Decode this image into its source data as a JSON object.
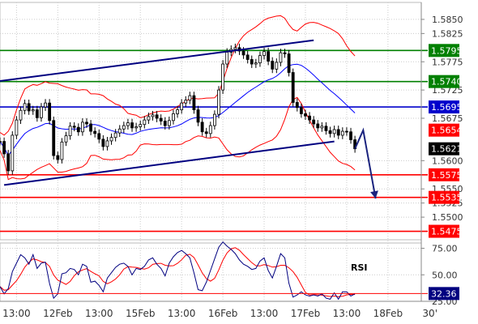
{
  "chart_data": {
    "type": "line",
    "price_panel": {
      "ylim": [
        1.546,
        1.588
      ],
      "y_ticks": [
        "1.5850",
        "1.5825",
        "1.5775",
        "1.5725",
        "1.5675",
        "1.5600",
        "1.5550",
        "1.5525",
        "1.5500"
      ],
      "tick_values": [
        1.585,
        1.5825,
        1.5775,
        1.5725,
        1.5675,
        1.56,
        1.555,
        1.5525,
        1.55
      ],
      "levels": [
        {
          "label": "1.5795",
          "value": 1.5795,
          "kind": "resistance",
          "color": "#008000"
        },
        {
          "label": "1.5740",
          "value": 1.574,
          "kind": "resistance",
          "color": "#008000"
        },
        {
          "label": "1.5695",
          "value": 1.5695,
          "kind": "pivot",
          "color": "#0000cc"
        },
        {
          "label": "1.5654",
          "value": 1.5654,
          "kind": "marker",
          "color": "#ff0000"
        },
        {
          "label": "1.5621",
          "value": 1.5621,
          "kind": "current",
          "color": "#000000"
        },
        {
          "label": "1.5575",
          "value": 1.5575,
          "kind": "support",
          "color": "#ff0000"
        },
        {
          "label": "1.5535",
          "value": 1.5535,
          "kind": "support",
          "color": "#ff0000"
        },
        {
          "label": "1.5475",
          "value": 1.5475,
          "kind": "support",
          "color": "#ff0000"
        }
      ],
      "close_series": [
        1.5634,
        1.5612,
        1.5582,
        1.5645,
        1.5672,
        1.5689,
        1.5701,
        1.5688,
        1.569,
        1.5676,
        1.5695,
        1.5702,
        1.5671,
        1.5609,
        1.5602,
        1.5633,
        1.5644,
        1.5661,
        1.5659,
        1.5651,
        1.5668,
        1.5665,
        1.5652,
        1.5648,
        1.5638,
        1.5625,
        1.5635,
        1.5641,
        1.5649,
        1.5656,
        1.5662,
        1.5667,
        1.5658,
        1.566,
        1.5664,
        1.5672,
        1.5678,
        1.5681,
        1.5675,
        1.567,
        1.5662,
        1.5671,
        1.5683,
        1.569,
        1.5702,
        1.5707,
        1.5715,
        1.569,
        1.5668,
        1.5651,
        1.5648,
        1.5662,
        1.5682,
        1.5725,
        1.5771,
        1.5792,
        1.5797,
        1.58,
        1.5794,
        1.5787,
        1.5779,
        1.5771,
        1.5773,
        1.5786,
        1.5793,
        1.5776,
        1.5762,
        1.5774,
        1.5791,
        1.5789,
        1.5756,
        1.5703,
        1.5694,
        1.5683,
        1.5679,
        1.5672,
        1.5665,
        1.5658,
        1.5661,
        1.5653,
        1.5648,
        1.5655,
        1.5645,
        1.5652,
        1.5651,
        1.5637,
        1.5621
      ],
      "trend_channel": {
        "upper": [
          {
            "x": 0,
            "y": 1.5741
          },
          {
            "x": 76,
            "y": 1.5813
          }
        ],
        "lower": [
          {
            "x": 1,
            "y": 1.5557
          },
          {
            "x": 81,
            "y": 1.5634
          }
        ]
      },
      "projection": [
        {
          "x": 86,
          "y": 1.5621
        },
        {
          "x": 88,
          "y": 1.5654
        },
        {
          "x": 91,
          "y": 1.5533
        }
      ]
    },
    "rsi_panel": {
      "label": "RSI",
      "ylim": [
        25,
        80
      ],
      "y_ticks": [
        "75.00",
        "50.00",
        "25.00"
      ],
      "tick_values": [
        75,
        50,
        25
      ],
      "current": {
        "label": "32.36",
        "value": 32.36
      },
      "rsi_series": [
        39,
        32,
        37,
        53,
        61,
        69,
        66,
        60,
        69,
        56,
        61,
        62,
        42,
        28,
        32,
        51,
        52,
        56,
        55,
        50,
        60,
        58,
        43,
        44,
        40,
        34,
        47,
        52,
        57,
        60,
        61,
        58,
        50,
        56,
        55,
        58,
        64,
        66,
        60,
        56,
        49,
        61,
        67,
        71,
        73,
        70,
        66,
        52,
        36,
        35,
        43,
        54,
        65,
        76,
        81,
        77,
        74,
        70,
        64,
        60,
        58,
        55,
        56,
        63,
        66,
        54,
        47,
        58,
        70,
        66,
        42,
        29,
        31,
        34,
        31,
        30,
        31,
        30,
        32,
        28,
        27,
        33,
        27,
        34,
        34,
        30,
        32
      ]
    },
    "x_ticks": [
      "13:00",
      "12Feb",
      "13:00",
      "15Feb",
      "13:00",
      "16Feb",
      "13:00",
      "17Feb",
      "13:00",
      "18Feb",
      "30'"
    ],
    "x_positions": [
      4,
      14,
      24,
      34,
      44,
      54,
      64,
      74,
      84,
      94,
      106
    ],
    "x_domain": [
      0,
      106
    ]
  },
  "colors": {
    "price": "#000000",
    "bollinger": "#ff0000",
    "moving_average": "#0000ff",
    "channel": "#000080",
    "projection_arrow": "#1a237e",
    "rsi": "#000080",
    "rsi_signal": "#ff0000",
    "grid": "#cccccc"
  }
}
